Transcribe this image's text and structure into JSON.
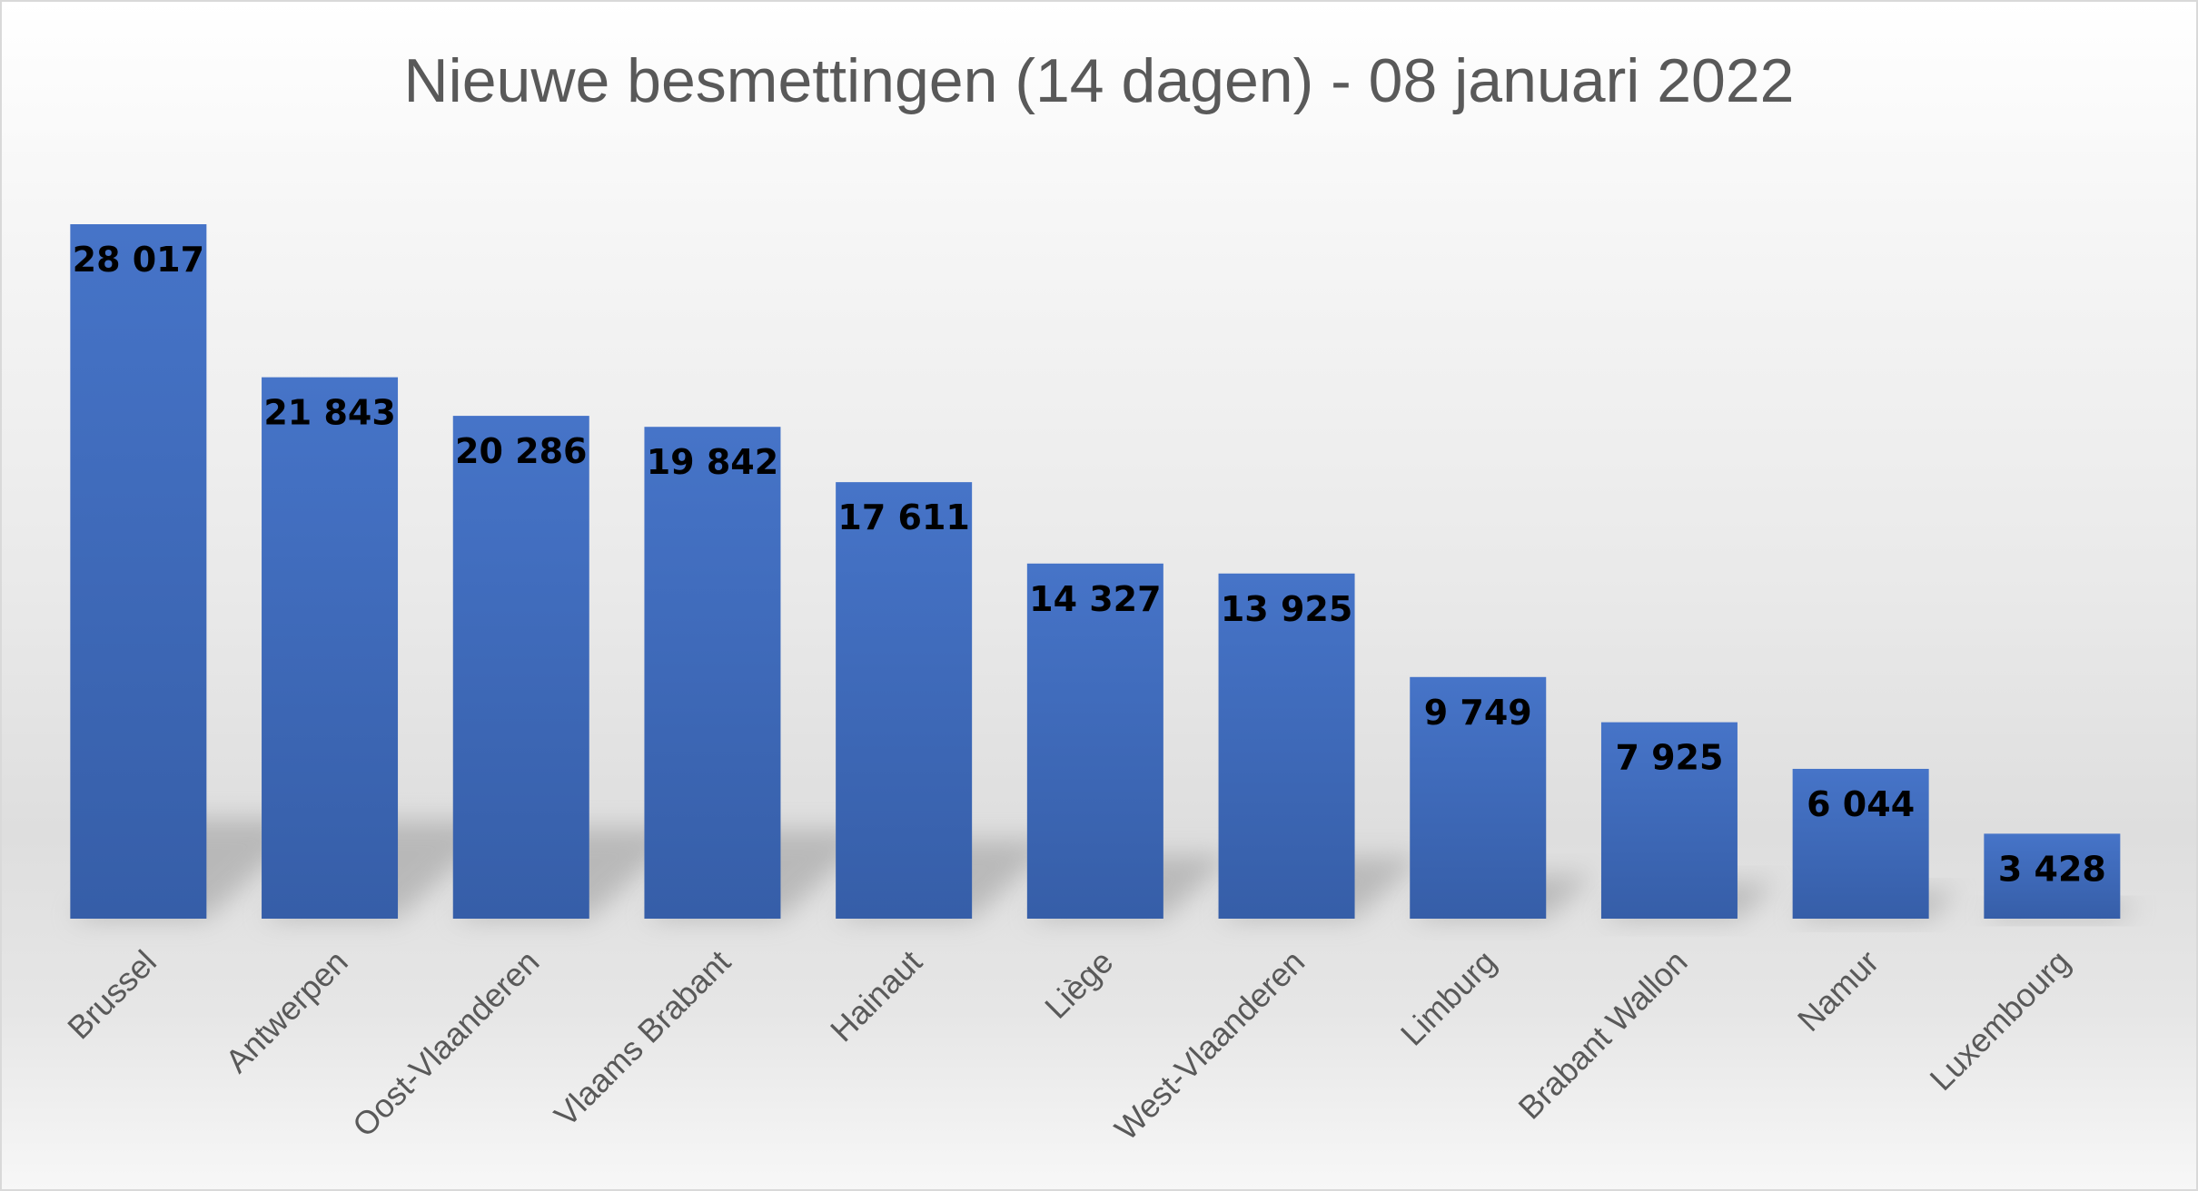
{
  "chart_data": {
    "type": "bar",
    "title": "Nieuwe besmettingen (14 dagen) - 08 januari 2022",
    "xlabel": "",
    "ylabel": "",
    "categories": [
      "Brussel",
      "Antwerpen",
      "Oost-Vlaanderen",
      "Vlaams Brabant",
      "Hainaut",
      "Liège",
      "West-Vlaanderen",
      "Limburg",
      "Brabant Wallon",
      "Namur",
      "Luxembourg"
    ],
    "values": [
      28017,
      21843,
      20286,
      19842,
      17611,
      14327,
      13925,
      9749,
      7925,
      6044,
      3428
    ],
    "value_labels": [
      "28 017",
      "21 843",
      "20 286",
      "19 842",
      "17 611",
      "14 327",
      "13 925",
      "9 749",
      "7 925",
      "6 044",
      "3 428"
    ],
    "ylim": [
      0,
      28017
    ],
    "grid": false,
    "legend": "none",
    "bar_color": "#4472C4"
  }
}
